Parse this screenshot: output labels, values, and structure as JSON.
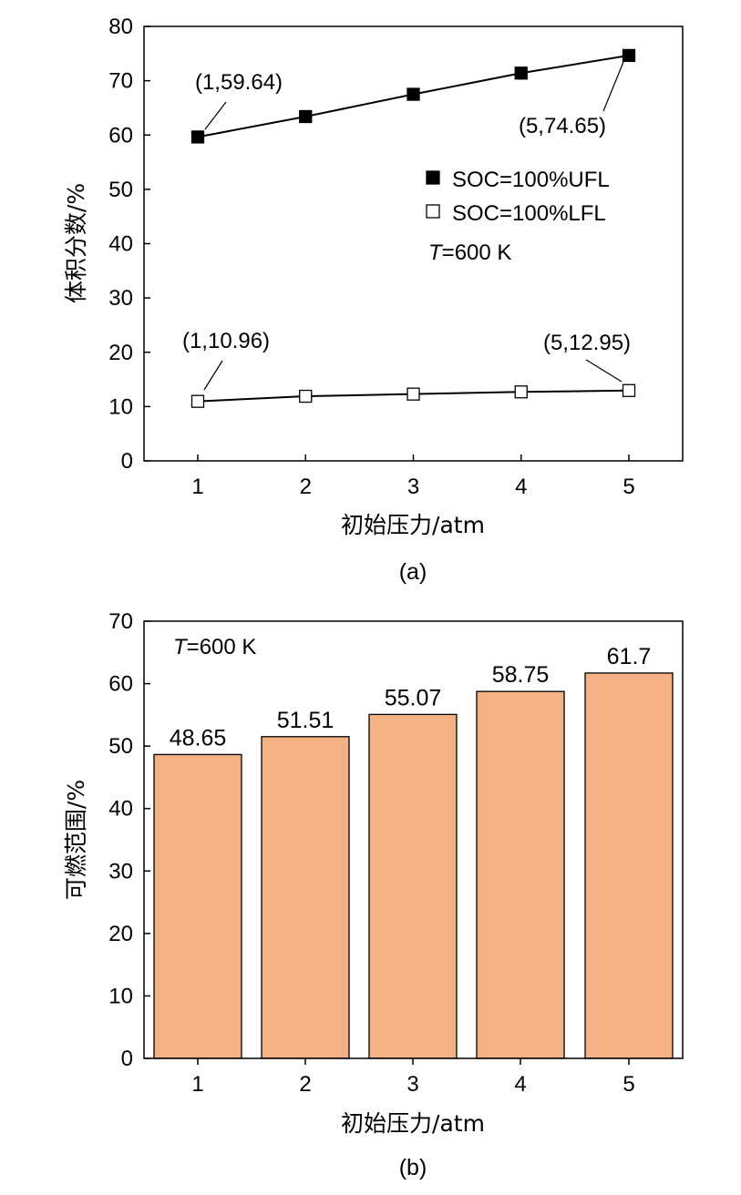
{
  "chart_data": [
    {
      "type": "line",
      "panel_label": "(a)",
      "xlabel": "初始压力/atm",
      "ylabel": "体积分数/%",
      "xlim": [
        0.5,
        5.5
      ],
      "ylim": [
        0,
        80
      ],
      "x_ticks": [
        1,
        2,
        3,
        4,
        5
      ],
      "y_ticks": [
        0,
        10,
        20,
        30,
        40,
        50,
        60,
        70,
        80
      ],
      "grid": false,
      "legend_position": "middle-right",
      "condition_note": {
        "italic": "T",
        "rest": "=600 K"
      },
      "x": [
        1,
        2,
        3,
        4,
        5
      ],
      "series": [
        {
          "name": "SOC=100%UFL",
          "marker": "filled-square",
          "color": "#000000",
          "values": [
            59.64,
            63.4,
            67.5,
            71.4,
            74.65
          ]
        },
        {
          "name": "SOC=100%LFL",
          "marker": "open-square",
          "color": "#000000",
          "values": [
            10.96,
            11.9,
            12.3,
            12.7,
            12.95
          ]
        }
      ],
      "annotations": [
        {
          "text": "(1,59.64)",
          "x": 1,
          "y": 59.64
        },
        {
          "text": "(5,74.65)",
          "x": 5,
          "y": 74.65
        },
        {
          "text": "(1,10.96)",
          "x": 1,
          "y": 10.96
        },
        {
          "text": "(5,12.95)",
          "x": 5,
          "y": 12.95
        }
      ]
    },
    {
      "type": "bar",
      "panel_label": "(b)",
      "xlabel": "初始压力/atm",
      "ylabel": "可燃范围/%",
      "ylim": [
        0,
        70
      ],
      "y_ticks": [
        0,
        10,
        20,
        30,
        40,
        50,
        60,
        70
      ],
      "grid": false,
      "condition_note": {
        "italic": "T",
        "rest": "=600 K"
      },
      "categories": [
        "1",
        "2",
        "3",
        "4",
        "5"
      ],
      "values": [
        48.65,
        51.51,
        55.07,
        58.75,
        61.7
      ],
      "value_labels": [
        "48.65",
        "51.51",
        "55.07",
        "58.75",
        "61.7"
      ],
      "bar_color": "#f4b183"
    }
  ]
}
